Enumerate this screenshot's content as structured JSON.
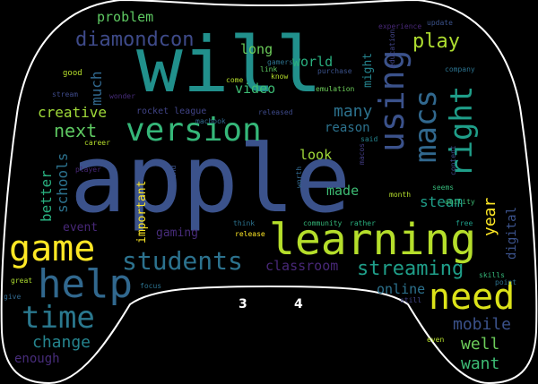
{
  "words": [
    {
      "text": "apple",
      "size": 104,
      "color": "#3b528b",
      "vertical": false
    },
    {
      "text": "will",
      "size": 86,
      "color": "#21908c",
      "vertical": false
    },
    {
      "text": "learning",
      "size": 48,
      "color": "#b5de2b",
      "vertical": false
    },
    {
      "text": "version",
      "size": 36,
      "color": "#35b779",
      "vertical": false
    },
    {
      "text": "help",
      "size": 44,
      "color": "#31688e",
      "vertical": false
    },
    {
      "text": "game",
      "size": 40,
      "color": "#fde725",
      "vertical": false
    },
    {
      "text": "need",
      "size": 40,
      "color": "#dce319",
      "vertical": false
    },
    {
      "text": "students",
      "size": 28,
      "color": "#2c728e",
      "vertical": false
    },
    {
      "text": "time",
      "size": 34,
      "color": "#2a788e",
      "vertical": false
    },
    {
      "text": "using",
      "size": 38,
      "color": "#3b528b",
      "vertical": true
    },
    {
      "text": "macs",
      "size": 34,
      "color": "#31688e",
      "vertical": true
    },
    {
      "text": "right",
      "size": 34,
      "color": "#1f9e89",
      "vertical": true
    },
    {
      "text": "streaming",
      "size": 22,
      "color": "#1f9e89",
      "vertical": false
    },
    {
      "text": "diamondcon",
      "size": 22,
      "color": "#3e4a89",
      "vertical": false
    },
    {
      "text": "play",
      "size": 22,
      "color": "#addc30",
      "vertical": false
    },
    {
      "text": "next",
      "size": 20,
      "color": "#5ec962",
      "vertical": false
    },
    {
      "text": "creative",
      "size": 16,
      "color": "#a0da39",
      "vertical": false
    },
    {
      "text": "many",
      "size": 18,
      "color": "#2c728e",
      "vertical": false
    },
    {
      "text": "mobile",
      "size": 18,
      "color": "#3b528b",
      "vertical": false
    },
    {
      "text": "well",
      "size": 18,
      "color": "#6ccd5a",
      "vertical": false
    },
    {
      "text": "want",
      "size": 18,
      "color": "#3dbc74",
      "vertical": false
    },
    {
      "text": "change",
      "size": 18,
      "color": "#25848e",
      "vertical": false
    },
    {
      "text": "much",
      "size": 16,
      "color": "#31688e",
      "vertical": true
    },
    {
      "text": "schools",
      "size": 16,
      "color": "#2c728e",
      "vertical": true
    },
    {
      "text": "better",
      "size": 16,
      "color": "#29af7f",
      "vertical": true
    },
    {
      "text": "year",
      "size": 18,
      "color": "#fde725",
      "vertical": true
    },
    {
      "text": "steam",
      "size": 16,
      "color": "#1f9e89",
      "vertical": false
    },
    {
      "text": "online",
      "size": 15,
      "color": "#2c728e",
      "vertical": false
    },
    {
      "text": "problem",
      "size": 15,
      "color": "#5ec962",
      "vertical": false
    },
    {
      "text": "long",
      "size": 15,
      "color": "#6ccd5a",
      "vertical": false
    },
    {
      "text": "world",
      "size": 15,
      "color": "#29af7f",
      "vertical": false
    },
    {
      "text": "video",
      "size": 15,
      "color": "#3dbc74",
      "vertical": false
    },
    {
      "text": "look",
      "size": 15,
      "color": "#a0da39",
      "vertical": false
    },
    {
      "text": "made",
      "size": 15,
      "color": "#3dbc74",
      "vertical": false
    },
    {
      "text": "classroom",
      "size": 15,
      "color": "#482878",
      "vertical": false
    },
    {
      "text": "reason",
      "size": 14,
      "color": "#2c728e",
      "vertical": false
    },
    {
      "text": "event",
      "size": 13,
      "color": "#482878",
      "vertical": false
    },
    {
      "text": "enough",
      "size": 14,
      "color": "#472c7a",
      "vertical": false
    },
    {
      "text": "gaming",
      "size": 13,
      "color": "#472c7a",
      "vertical": false
    },
    {
      "text": "important",
      "size": 13,
      "color": "#fde725",
      "vertical": true
    },
    {
      "text": "digital",
      "size": 14,
      "color": "#3b528b",
      "vertical": true
    },
    {
      "text": "might",
      "size": 13,
      "color": "#25848e",
      "vertical": true
    },
    {
      "text": "rocket league",
      "size": 10,
      "color": "#414487",
      "vertical": false
    },
    {
      "text": "experience",
      "size": 8,
      "color": "#482878",
      "vertical": false
    },
    {
      "text": "gamers",
      "size": 8,
      "color": "#2c728e",
      "vertical": false
    },
    {
      "text": "link",
      "size": 8,
      "color": "#5ec962",
      "vertical": false
    },
    {
      "text": "know",
      "size": 8,
      "color": "#b5de2b",
      "vertical": false
    },
    {
      "text": "purchase",
      "size": 8,
      "color": "#3b528b",
      "vertical": false
    },
    {
      "text": "emulation",
      "size": 8,
      "color": "#6ccd5a",
      "vertical": false
    },
    {
      "text": "education",
      "size": 8,
      "color": "#414487",
      "vertical": true
    },
    {
      "text": "update",
      "size": 8,
      "color": "#3b528b",
      "vertical": false
    },
    {
      "text": "company",
      "size": 8,
      "color": "#2c728e",
      "vertical": false
    },
    {
      "text": "good",
      "size": 9,
      "color": "#b5de2b",
      "vertical": false
    },
    {
      "text": "stream",
      "size": 8,
      "color": "#3e4a89",
      "vertical": false
    },
    {
      "text": "wonder",
      "size": 8,
      "color": "#472c7a",
      "vertical": false
    },
    {
      "text": "come",
      "size": 8,
      "color": "#b5de2b",
      "vertical": false
    },
    {
      "text": "released",
      "size": 8,
      "color": "#3e4a89",
      "vertical": false
    },
    {
      "text": "said",
      "size": 8,
      "color": "#25848e",
      "vertical": false
    },
    {
      "text": "career",
      "size": 8,
      "color": "#b5de2b",
      "vertical": false
    },
    {
      "text": "macbook",
      "size": 8,
      "color": "#31688e",
      "vertical": false
    },
    {
      "text": "macos",
      "size": 8,
      "color": "#433e85",
      "vertical": true
    },
    {
      "text": "player",
      "size": 8,
      "color": "#482878",
      "vertical": false
    },
    {
      "text": "find",
      "size": 8,
      "color": "#3b528b",
      "vertical": true
    },
    {
      "text": "worth",
      "size": 8,
      "color": "#31688e",
      "vertical": true
    },
    {
      "text": "content",
      "size": 8,
      "color": "#3e4a89",
      "vertical": true
    },
    {
      "text": "month",
      "size": 8,
      "color": "#b5de2b",
      "vertical": false
    },
    {
      "text": "seems",
      "size": 8,
      "color": "#35b779",
      "vertical": false
    },
    {
      "text": "ability",
      "size": 8,
      "color": "#3dbc74",
      "vertical": false
    },
    {
      "text": "think",
      "size": 8,
      "color": "#2c728e",
      "vertical": false
    },
    {
      "text": "community",
      "size": 8,
      "color": "#35b779",
      "vertical": false
    },
    {
      "text": "rather",
      "size": 8,
      "color": "#29af7f",
      "vertical": false
    },
    {
      "text": "free",
      "size": 8,
      "color": "#1f9e89",
      "vertical": false
    },
    {
      "text": "release",
      "size": 8,
      "color": "#fde725",
      "vertical": false
    },
    {
      "text": "great",
      "size": 8,
      "color": "#addc30",
      "vertical": false
    },
    {
      "text": "focus",
      "size": 8,
      "color": "#2c728e",
      "vertical": false
    },
    {
      "text": "give",
      "size": 8,
      "color": "#31688e",
      "vertical": false
    },
    {
      "text": "skills",
      "size": 8,
      "color": "#35b779",
      "vertical": false
    },
    {
      "text": "point",
      "size": 8,
      "color": "#2c728e",
      "vertical": false
    },
    {
      "text": "still",
      "size": 8,
      "color": "#414487",
      "vertical": false
    },
    {
      "text": "even",
      "size": 8,
      "color": "#b5de2b",
      "vertical": false
    }
  ],
  "buttons": [
    {
      "label": "3"
    },
    {
      "label": "4"
    }
  ],
  "colors": {
    "background": "#000000",
    "outline": "#ffffff"
  }
}
